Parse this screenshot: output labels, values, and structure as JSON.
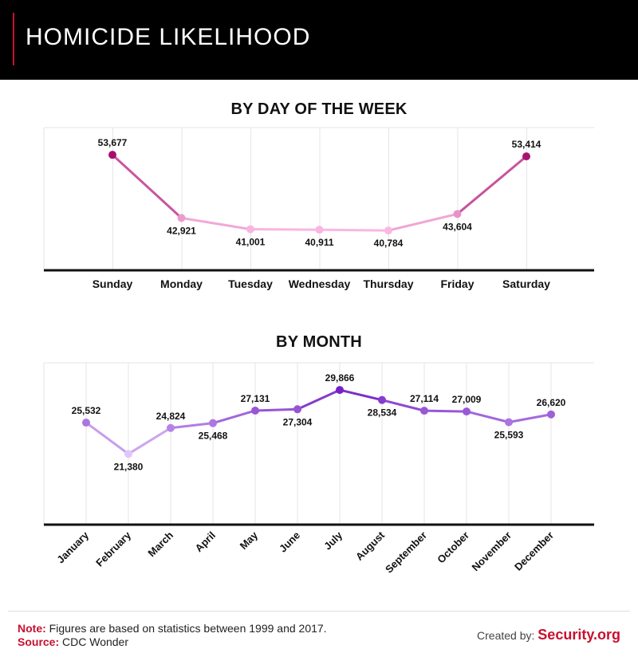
{
  "header": {
    "title": "HOMICIDE LIKELIHOOD"
  },
  "chart_data": [
    {
      "type": "line",
      "title": "BY DAY OF THE WEEK",
      "categories": [
        "Sunday",
        "Monday",
        "Tuesday",
        "Wednesday",
        "Thursday",
        "Friday",
        "Saturday"
      ],
      "values": [
        53677,
        42921,
        41001,
        40911,
        40784,
        43604,
        53414
      ],
      "data_labels": [
        "53,677",
        "42,921",
        "41,001",
        "40,911",
        "40,784",
        "43,604",
        "53,414"
      ],
      "ylim": [
        34000,
        59000
      ],
      "grid": "vertical",
      "colors": {
        "low": "#f9b8e2",
        "high": "#a60f6e"
      }
    },
    {
      "type": "line",
      "title": "BY MONTH",
      "categories": [
        "January",
        "February",
        "March",
        "April",
        "May",
        "June",
        "July",
        "August",
        "September",
        "October",
        "November",
        "December"
      ],
      "values": [
        25532,
        21380,
        24824,
        25468,
        27131,
        27304,
        29866,
        28534,
        27114,
        27009,
        25593,
        26620
      ],
      "data_labels": [
        "25,532",
        "21,380",
        "24,824",
        "25,468",
        "27,131",
        "27,304",
        "29,866",
        "28,534",
        "27,114",
        "27,009",
        "25,593",
        "26,620"
      ],
      "ylim": [
        12000,
        34000
      ],
      "grid": "vertical",
      "colors": {
        "low": "#e1c6fb",
        "high": "#7522c4"
      }
    }
  ],
  "footer": {
    "note_label": "Note:",
    "note_text": " Figures are based on statistics between 1999 and 2017.",
    "source_label": "Source:",
    "source_text": " CDC Wonder",
    "created_label": "Created by: ",
    "brand": "Security.org"
  }
}
